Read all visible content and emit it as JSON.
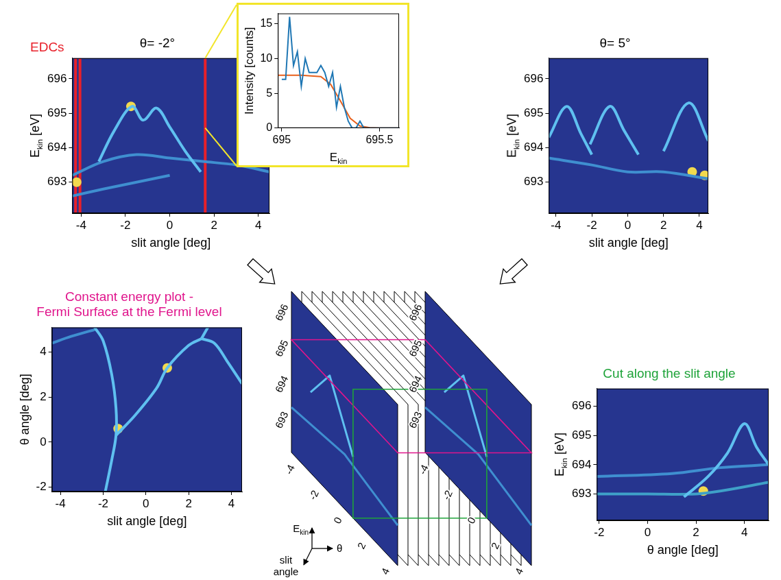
{
  "chart_data": [
    {
      "type": "bands",
      "title": {
        "text": "θ= -2°",
        "color": "#000000"
      },
      "annotations": [
        {
          "text": "EDCs",
          "color": "#e8202a"
        }
      ],
      "xlabel": "slit angle [deg]",
      "ylabel": {
        "text": "E",
        "sub": "kin",
        "unit": " [eV]"
      },
      "xlim": [
        -4.4,
        4.5
      ],
      "xticks": [
        -4,
        -2,
        0,
        2,
        4
      ],
      "ylim": [
        692.1,
        696.6
      ],
      "yticks": [
        693,
        694,
        695,
        696
      ],
      "series": [
        {
          "color": "#5fc0f0",
          "line_style": "solid",
          "marker": "none",
          "x": [
            -3.2,
            -2.5,
            -1.7,
            -1.2,
            -0.6,
            0.0,
            0.7,
            1.4
          ],
          "values": [
            693.6,
            694.5,
            695.2,
            694.8,
            695.15,
            694.6,
            693.9,
            693.3
          ]
        },
        {
          "color": "#3f8fd0",
          "line_style": "solid",
          "marker": "none",
          "x": [
            -4.4,
            -3,
            -1.5,
            0,
            1.5,
            3,
            4.5
          ],
          "values": [
            693.2,
            693.6,
            693.8,
            693.7,
            693.6,
            693.5,
            693.3
          ]
        },
        {
          "color": "#3f8fd0",
          "line_style": "solid",
          "marker": "none",
          "x": [
            -4.4,
            -3,
            -1.5,
            0
          ],
          "values": [
            692.6,
            692.8,
            693.0,
            693.2
          ]
        },
        {
          "color": "#f2d94e",
          "line_style": "none",
          "marker": "circle",
          "x": [
            -4.2,
            -1.75
          ],
          "values": [
            693.0,
            695.2
          ]
        },
        {
          "color": "#e8202a",
          "line_style": "solid",
          "marker": "none",
          "x": [
            -4.25,
            -4.25
          ],
          "values": [
            692.1,
            696.6
          ]
        },
        {
          "color": "#e8202a",
          "line_style": "solid",
          "marker": "none",
          "x": [
            -4.05,
            -4.05
          ],
          "values": [
            692.1,
            696.6
          ]
        },
        {
          "color": "#e8202a",
          "line_style": "solid",
          "marker": "none",
          "x": [
            1.6,
            1.6
          ],
          "values": [
            692.1,
            696.6
          ]
        }
      ]
    },
    {
      "type": "line",
      "xlabel": {
        "text": "E",
        "sub": "kin"
      },
      "ylabel": "Intensity [counts]",
      "xlim": [
        694.98,
        695.6
      ],
      "xticks": [
        695,
        695.5
      ],
      "ylim": [
        0,
        16.5
      ],
      "yticks": [
        0,
        5,
        10,
        15
      ],
      "series": [
        {
          "color": "#1f77b4",
          "line_style": "solid",
          "marker": "none",
          "x": [
            695.0,
            695.02,
            695.04,
            695.06,
            695.08,
            695.1,
            695.12,
            695.14,
            695.16,
            695.18,
            695.2,
            695.22,
            695.24,
            695.26,
            695.28,
            695.3,
            695.32,
            695.34,
            695.36,
            695.38,
            695.4,
            695.42,
            695.44,
            695.46,
            695.48,
            695.5,
            695.52,
            695.54,
            695.56,
            695.58,
            695.6
          ],
          "values": [
            7,
            7,
            16,
            9,
            11,
            6,
            10,
            8,
            8,
            8,
            9,
            8,
            6,
            8,
            3,
            6,
            3,
            1,
            0,
            0,
            1,
            0,
            0,
            0,
            0,
            0,
            0,
            0,
            0,
            0,
            0
          ]
        },
        {
          "color": "#e8601c",
          "line_style": "solid",
          "marker": "none",
          "x": [
            694.98,
            695.1,
            695.2,
            695.25,
            695.3,
            695.35,
            695.4,
            695.45,
            695.5,
            695.6
          ],
          "values": [
            7.6,
            7.6,
            7.4,
            6.3,
            3.9,
            1.4,
            0.3,
            0.05,
            0,
            0
          ]
        }
      ]
    },
    {
      "type": "bands",
      "title": {
        "text": "θ= 5°",
        "color": "#000000"
      },
      "xlabel": "slit angle [deg]",
      "ylabel": {
        "text": "E",
        "sub": "kin",
        "unit": " [eV]"
      },
      "xlim": [
        -4.4,
        4.5
      ],
      "xticks": [
        -4,
        -2,
        0,
        2,
        4
      ],
      "ylim": [
        692.1,
        696.6
      ],
      "yticks": [
        693,
        694,
        695,
        696
      ],
      "series": [
        {
          "color": "#5fc0f0",
          "line_style": "solid",
          "marker": "none",
          "x": [
            -4.4,
            -3.4,
            -2.6,
            -2.0
          ],
          "values": [
            694.3,
            695.2,
            694.4,
            693.8
          ]
        },
        {
          "color": "#5fc0f0",
          "line_style": "solid",
          "marker": "none",
          "x": [
            -2.1,
            -1.0,
            -0.2,
            0.6
          ],
          "values": [
            694.1,
            695.2,
            694.5,
            693.8
          ]
        },
        {
          "color": "#5fc0f0",
          "line_style": "solid",
          "marker": "none",
          "x": [
            2.0,
            3.4,
            4.5
          ],
          "values": [
            693.9,
            695.3,
            694.2
          ]
        },
        {
          "color": "#3f8fd0",
          "line_style": "solid",
          "marker": "none",
          "x": [
            -4.4,
            -2,
            0,
            2,
            4.5
          ],
          "values": [
            693.7,
            693.5,
            693.3,
            693.3,
            693.1
          ]
        },
        {
          "color": "#f2d94e",
          "line_style": "none",
          "marker": "circle",
          "x": [
            3.6,
            4.3
          ],
          "values": [
            693.3,
            693.2
          ]
        }
      ]
    },
    {
      "type": "bands",
      "title": {
        "text": "Constant energy plot - Fermi Surface at the Fermi level",
        "color": "#e0158c"
      },
      "xlabel": "slit angle [deg]",
      "ylabel": "θ angle [deg]",
      "xlim": [
        -4.4,
        4.5
      ],
      "xticks": [
        -4,
        -2,
        0,
        2,
        4
      ],
      "ylim": [
        -2.2,
        5.1
      ],
      "yticks": [
        -2,
        0,
        2,
        4
      ],
      "series": [
        {
          "color": "#5fc0f0",
          "line_style": "solid",
          "marker": "none",
          "x": [
            -2.4,
            -2.0,
            -1.6,
            -1.4,
            -1.4,
            -1.6,
            -1.9
          ],
          "values": [
            5.1,
            4.5,
            3.0,
            1.5,
            0.3,
            -0.8,
            -2.2
          ]
        },
        {
          "color": "#5fc0f0",
          "line_style": "solid",
          "marker": "none",
          "x": [
            -1.4,
            -0.5,
            0.5,
            1.0,
            2.0,
            2.6
          ],
          "values": [
            0.3,
            1.2,
            2.4,
            3.3,
            4.3,
            4.6
          ]
        },
        {
          "color": "#5fc0f0",
          "line_style": "solid",
          "marker": "none",
          "x": [
            2.6,
            3.2,
            3.8,
            4.5
          ],
          "values": [
            4.6,
            4.4,
            3.6,
            2.6
          ]
        },
        {
          "color": "#5fc0f0",
          "line_style": "solid",
          "marker": "none",
          "x": [
            2.6,
            2.9
          ],
          "values": [
            4.6,
            5.1
          ]
        },
        {
          "color": "#3f8fd0",
          "line_style": "solid",
          "marker": "none",
          "x": [
            -4.4,
            -3.5,
            -2.4
          ],
          "values": [
            4.4,
            4.7,
            5.0
          ]
        },
        {
          "color": "#f2d94e",
          "line_style": "none",
          "marker": "circle",
          "x": [
            1.0,
            -1.3
          ],
          "values": [
            3.3,
            0.6
          ]
        }
      ]
    },
    {
      "type": "bands",
      "title": {
        "text": "Cut along the slit angle",
        "color": "#1fa33a"
      },
      "xlabel": "θ angle [deg]",
      "ylabel": {
        "text": "E",
        "sub": "kin",
        "unit": " [eV]"
      },
      "xlim": [
        -2.1,
        5.0
      ],
      "xticks": [
        -2,
        0,
        2,
        4
      ],
      "ylim": [
        692.1,
        696.6
      ],
      "yticks": [
        693,
        694,
        695,
        696
      ],
      "series": [
        {
          "color": "#5fc0f0",
          "line_style": "solid",
          "marker": "none",
          "x": [
            1.5,
            2.5,
            3.3,
            4.0,
            4.5,
            5.0
          ],
          "values": [
            692.9,
            693.6,
            694.4,
            695.4,
            694.6,
            694.0
          ]
        },
        {
          "color": "#3fa0c8",
          "line_style": "solid",
          "marker": "none",
          "x": [
            -2.1,
            0,
            2,
            3,
            5
          ],
          "values": [
            693.0,
            693.0,
            693.0,
            693.1,
            693.4
          ]
        },
        {
          "color": "#3f8fd0",
          "line_style": "solid",
          "marker": "none",
          "x": [
            -2.1,
            1,
            3,
            5
          ],
          "values": [
            693.6,
            693.7,
            693.9,
            694.0
          ]
        },
        {
          "color": "#f2d94e",
          "line_style": "none",
          "marker": "circle",
          "x": [
            2.3
          ],
          "values": [
            693.1
          ]
        }
      ]
    }
  ],
  "diagram": {
    "cube": {
      "e_kin_ticks": [
        696,
        695,
        694,
        693
      ],
      "slit_ticks": [
        -4,
        -2,
        0,
        2,
        4
      ],
      "axes": {
        "e_kin": {
          "text": "E",
          "sub": "kin"
        },
        "theta": "θ",
        "slit": "slit angle"
      }
    }
  }
}
